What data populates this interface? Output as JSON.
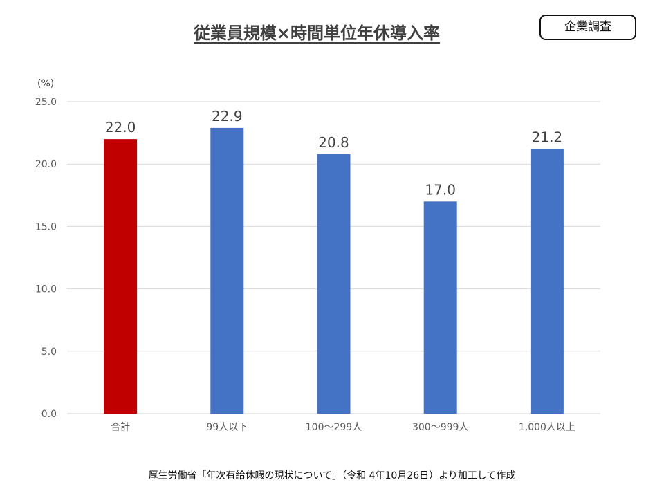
{
  "header": {
    "title": "従業員規模×時間単位年休導入率",
    "badge": "企業調査"
  },
  "footer": {
    "source": "厚生労働省「年次有給休暇の現状について」（令和 4年10月26日）より加工して作成"
  },
  "chart_data": {
    "type": "bar",
    "title": "従業員規模×時間単位年休導入率",
    "xlabel": "",
    "ylabel": "(%)",
    "categories": [
      "合計",
      "99人以下",
      "100～299人",
      "300～999人",
      "1,000人以上"
    ],
    "values": [
      22.0,
      22.9,
      20.8,
      17.0,
      21.2
    ],
    "value_labels": [
      "22.0",
      "22.9",
      "20.8",
      "17.0",
      "21.2"
    ],
    "ylim": [
      0,
      25
    ],
    "yticks": [
      0,
      5,
      10,
      15,
      20,
      25
    ],
    "ytick_labels": [
      "0.0",
      "5.0",
      "10.0",
      "15.0",
      "20.0",
      "25.0"
    ],
    "grid": true,
    "legend": "none",
    "colors": [
      "#c00000",
      "#4472c4",
      "#4472c4",
      "#4472c4",
      "#4472c4"
    ],
    "grid_color": "#d9d9d9",
    "axis_color": "#d0d0d0"
  }
}
